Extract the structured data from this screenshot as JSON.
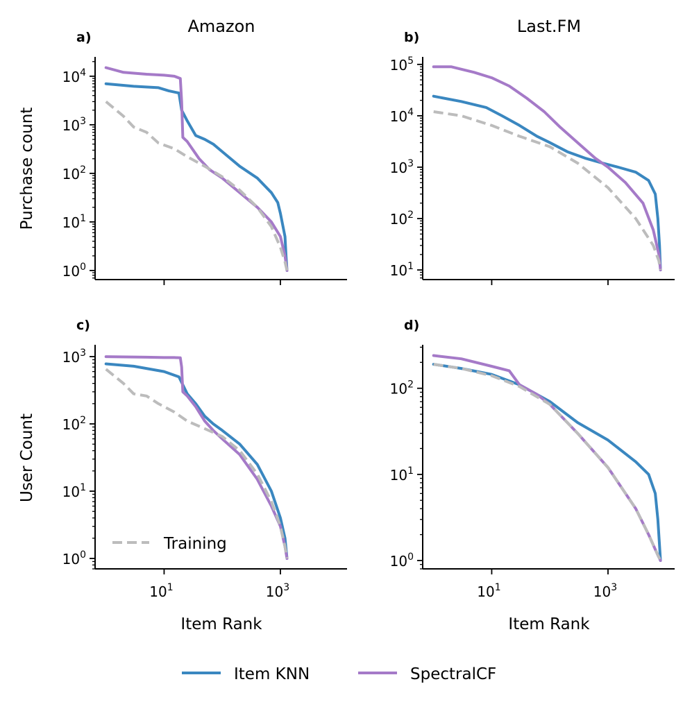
{
  "chart_data": {
    "type": "line",
    "x_scale": "log",
    "y_scale": "log",
    "column_titles": [
      "Amazon",
      "Last.FM"
    ],
    "row_ylabels": [
      "Purchase count",
      "User Count"
    ],
    "xlabel": "Item Rank",
    "x_ticks": [
      {
        "value": 10,
        "base": "10",
        "exp": "1"
      },
      {
        "value": 1000,
        "base": "10",
        "exp": "3"
      }
    ],
    "legend": {
      "placement": "bottom-center",
      "entries": [
        "Item KNN",
        "SpectralCF"
      ]
    },
    "colors": {
      "Item KNN": "#3a87c0",
      "SpectralCF": "#a57ac8",
      "Training": "#bcbcbc"
    },
    "panels": [
      {
        "id": "a",
        "label": "a)",
        "dataset": "Amazon",
        "metric": "Purchase count",
        "xlim": [
          0.65,
          14000
        ],
        "ylim": [
          0.65,
          25000
        ],
        "y_ticks": [
          {
            "value": 1,
            "base": "10",
            "exp": "0"
          },
          {
            "value": 10,
            "base": "10",
            "exp": "1"
          },
          {
            "value": 100,
            "base": "10",
            "exp": "2"
          },
          {
            "value": 1000,
            "base": "10",
            "exp": "3"
          },
          {
            "value": 10000,
            "base": "10",
            "exp": "4"
          }
        ],
        "series": [
          {
            "name": "Item KNN",
            "x": [
              1,
              3,
              8,
              12,
              18,
              20,
              25,
              35,
              50,
              70,
              100,
              200,
              400,
              700,
              900,
              1000,
              1200,
              1250,
              1300
            ],
            "y": [
              7000,
              6200,
              5800,
              5000,
              4500,
              2000,
              1200,
              600,
              500,
              400,
              280,
              140,
              80,
              40,
              25,
              15,
              5,
              2,
              1
            ]
          },
          {
            "name": "SpectralCF",
            "x": [
              1,
              2,
              5,
              10,
              15,
              19,
              20,
              21,
              25,
              40,
              60,
              100,
              200,
              400,
              700,
              1000,
              1200,
              1300
            ],
            "y": [
              15000,
              12000,
              11000,
              10500,
              10000,
              9000,
              3000,
              550,
              450,
              200,
              120,
              80,
              40,
              20,
              10,
              5,
              2,
              1
            ]
          },
          {
            "name": "Training",
            "x": [
              1,
              2,
              3,
              5,
              8,
              15,
              25,
              50,
              100,
              200,
              400,
              700,
              1000,
              1200,
              1300
            ],
            "y": [
              3000,
              1500,
              900,
              700,
              420,
              320,
              220,
              140,
              85,
              45,
              20,
              8,
              3,
              1.5,
              1
            ]
          }
        ]
      },
      {
        "id": "b",
        "label": "b)",
        "dataset": "Last.FM",
        "metric": "Purchase count",
        "xlim": [
          0.65,
          14000
        ],
        "ylim": [
          6.5,
          140000
        ],
        "y_ticks": [
          {
            "value": 10,
            "base": "10",
            "exp": "1"
          },
          {
            "value": 100,
            "base": "10",
            "exp": "2"
          },
          {
            "value": 1000,
            "base": "10",
            "exp": "3"
          },
          {
            "value": 10000,
            "base": "10",
            "exp": "4"
          },
          {
            "value": 100000,
            "base": "10",
            "exp": "5"
          }
        ],
        "series": [
          {
            "name": "Item KNN",
            "x": [
              1,
              3,
              8,
              15,
              30,
              60,
              100,
              200,
              400,
              800,
              1500,
              3000,
              5000,
              6500,
              7200,
              7700,
              8000
            ],
            "y": [
              24000,
              19000,
              14500,
              10000,
              6500,
              4000,
              3000,
              2000,
              1500,
              1200,
              1000,
              800,
              550,
              300,
              100,
              30,
              10
            ]
          },
          {
            "name": "SpectralCF",
            "x": [
              1,
              2,
              5,
              10,
              20,
              40,
              80,
              150,
              300,
              600,
              1000,
              2000,
              4000,
              6000,
              7500,
              8000
            ],
            "y": [
              90000,
              90000,
              70000,
              55000,
              38000,
              22000,
              12000,
              6000,
              3000,
              1500,
              1000,
              500,
              200,
              60,
              20,
              10
            ]
          },
          {
            "name": "Training",
            "x": [
              1,
              3,
              10,
              30,
              100,
              300,
              1000,
              3000,
              6000,
              7500,
              8000
            ],
            "y": [
              12000,
              10000,
              6500,
              4000,
              2500,
              1200,
              400,
              100,
              30,
              15,
              10
            ]
          }
        ]
      },
      {
        "id": "c",
        "label": "c)",
        "dataset": "Amazon",
        "metric": "User Count",
        "xlim": [
          0.65,
          14000
        ],
        "ylim": [
          0.7,
          1500
        ],
        "y_ticks": [
          {
            "value": 1,
            "base": "10",
            "exp": "0"
          },
          {
            "value": 10,
            "base": "10",
            "exp": "1"
          },
          {
            "value": 100,
            "base": "10",
            "exp": "2"
          },
          {
            "value": 1000,
            "base": "10",
            "exp": "3"
          }
        ],
        "series": [
          {
            "name": "Item KNN",
            "x": [
              1,
              3,
              10,
              18,
              25,
              35,
              50,
              70,
              100,
              200,
              400,
              700,
              1000,
              1200,
              1300
            ],
            "y": [
              780,
              720,
              600,
              500,
              280,
              200,
              130,
              100,
              80,
              50,
              25,
              10,
              4,
              2,
              1
            ]
          },
          {
            "name": "SpectralCF",
            "x": [
              1,
              5,
              10,
              15,
              19,
              20,
              21,
              25,
              35,
              50,
              70,
              100,
              200,
              400,
              700,
              1000,
              1200,
              1300
            ],
            "y": [
              1000,
              980,
              970,
              970,
              960,
              700,
              300,
              260,
              180,
              110,
              80,
              60,
              35,
              15,
              6,
              3,
              1.5,
              1
            ]
          },
          {
            "name": "Training",
            "x": [
              1,
              2,
              3,
              5,
              8,
              15,
              25,
              50,
              100,
              200,
              400,
              700,
              1000,
              1200,
              1300
            ],
            "y": [
              650,
              400,
              280,
              260,
              200,
              150,
              110,
              85,
              65,
              40,
              18,
              7,
              3,
              1.5,
              1
            ]
          }
        ],
        "inset_legend": {
          "placement": "lower-left",
          "entries": [
            "Training"
          ]
        }
      },
      {
        "id": "d",
        "label": "d)",
        "dataset": "Last.FM",
        "metric": "User Count",
        "xlim": [
          0.65,
          14000
        ],
        "ylim": [
          0.8,
          320
        ],
        "y_ticks": [
          {
            "value": 1,
            "base": "10",
            "exp": "0"
          },
          {
            "value": 10,
            "base": "10",
            "exp": "1"
          },
          {
            "value": 100,
            "base": "10",
            "exp": "2"
          }
        ],
        "series": [
          {
            "name": "Item KNN",
            "x": [
              1,
              3,
              10,
              30,
              100,
              300,
              1000,
              3000,
              5000,
              6500,
              7200,
              7700,
              8000
            ],
            "y": [
              190,
              170,
              145,
              110,
              70,
              40,
              25,
              14,
              10,
              6,
              3,
              1.5,
              1
            ]
          },
          {
            "name": "SpectralCF",
            "x": [
              1,
              3,
              10,
              20,
              30,
              60,
              100,
              300,
              1000,
              3000,
              5000,
              7000,
              8000
            ],
            "y": [
              240,
              220,
              180,
              160,
              110,
              85,
              65,
              30,
              12,
              4,
              2,
              1.2,
              1
            ]
          },
          {
            "name": "Training",
            "x": [
              1,
              3,
              10,
              30,
              100,
              300,
              1000,
              3000,
              5000,
              7000,
              8000
            ],
            "y": [
              190,
              170,
              140,
              105,
              65,
              30,
              12,
              4,
              2,
              1.2,
              1
            ]
          }
        ]
      }
    ]
  }
}
